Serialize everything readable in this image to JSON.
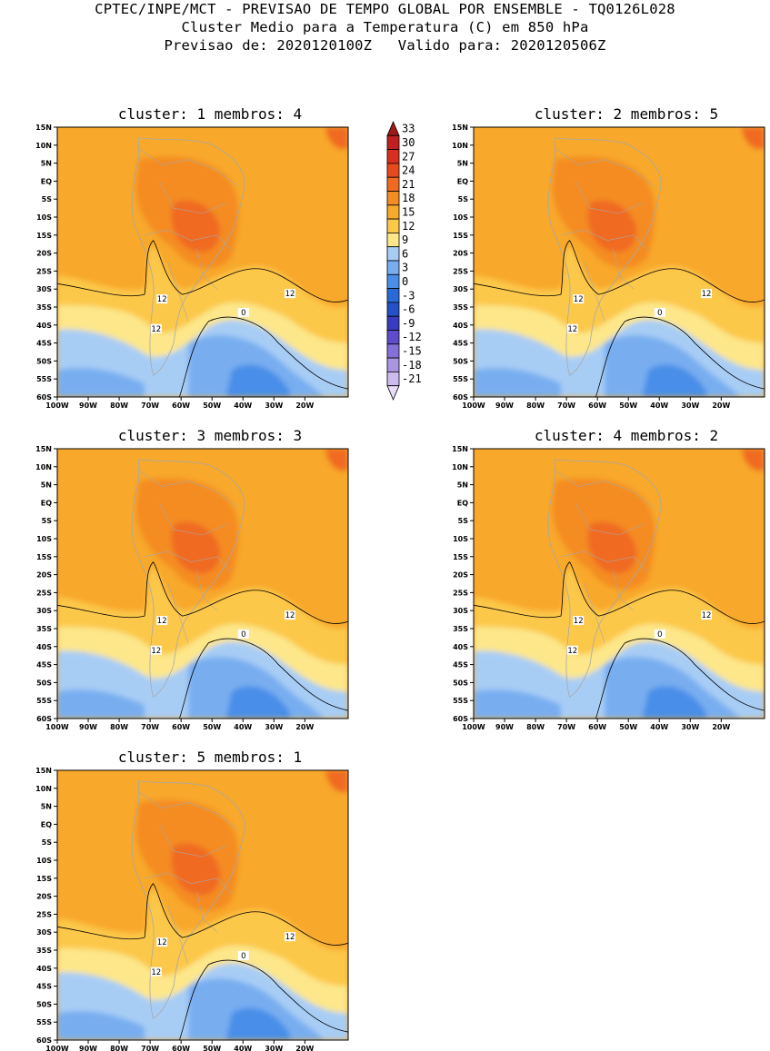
{
  "header": {
    "line1": "CPTEC/INPE/MCT - PREVISAO DE TEMPO GLOBAL POR ENSEMBLE - TQ0126L028",
    "line2": "Cluster Medio para a Temperatura (C) em 850 hPa",
    "line3": "Previsao de: 2020120100Z   Valido para: 2020120506Z"
  },
  "axes": {
    "lat_ticks": [
      "15N",
      "10N",
      "5N",
      "EQ",
      "5S",
      "10S",
      "15S",
      "20S",
      "25S",
      "30S",
      "35S",
      "40S",
      "45S",
      "50S",
      "55S",
      "60S"
    ],
    "lon_ticks": [
      "100W",
      "90W",
      "80W",
      "70W",
      "60W",
      "50W",
      "40W",
      "30W",
      "20W"
    ]
  },
  "colorbar": {
    "labels": [
      "33",
      "30",
      "27",
      "24",
      "21",
      "18",
      "15",
      "12",
      "9",
      "6",
      "3",
      "0",
      "-3",
      "-6",
      "-9",
      "-12",
      "-15",
      "-18",
      "-21"
    ],
    "colors": [
      "#a01818",
      "#c02020",
      "#d83020",
      "#e84a1e",
      "#f06a22",
      "#f48c24",
      "#f8a82a",
      "#fcc84a",
      "#fde78a",
      "#a8cdf5",
      "#78aef0",
      "#4a8ee8",
      "#2a6ad8",
      "#2650c8",
      "#3a3cc0",
      "#5e4ccc",
      "#8470d8",
      "#a896e2",
      "#ccbcee",
      "#e8dcf6"
    ]
  },
  "panels": [
    {
      "title": "cluster: 1   membros: 4",
      "contour_labels": [
        "12",
        "12",
        "12",
        "0"
      ]
    },
    {
      "title": "cluster: 2   membros: 5",
      "contour_labels": [
        "12",
        "12",
        "12",
        "0"
      ]
    },
    {
      "title": "cluster: 3   membros: 3",
      "contour_labels": [
        "12",
        "12",
        "12",
        "0"
      ]
    },
    {
      "title": "cluster: 4   membros: 2",
      "contour_labels": [
        "12",
        "12",
        "12",
        "0"
      ]
    },
    {
      "title": "cluster: 5   membros: 1",
      "contour_labels": [
        "12",
        "12",
        "12",
        "0"
      ]
    }
  ]
}
